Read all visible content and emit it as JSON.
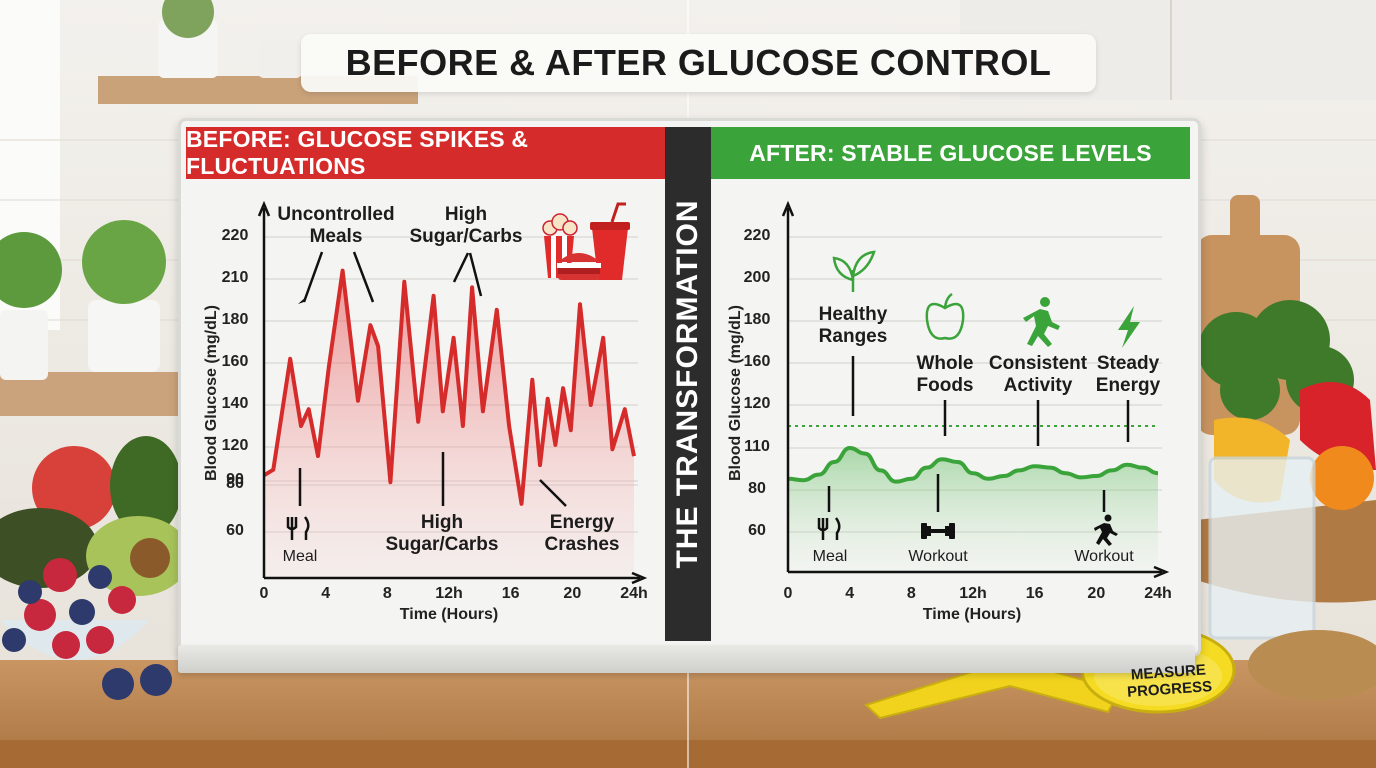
{
  "title": "BEFORE & AFTER GLUCOSE CONTROL",
  "divider_label": "THE TRANSFORMATION",
  "tape_label": [
    "MEASURE",
    "PROGRESS"
  ],
  "colors": {
    "before": "#d62b2b",
    "after": "#3aa33a",
    "divider": "#2c2c2c"
  },
  "chart_data": [
    {
      "type": "area",
      "title": "BEFORE: GLUCOSE SPIKES & FLUCTUATIONS",
      "xlabel": "Time (Hours)",
      "ylabel": "Blood Glucose (mg/dL)",
      "x_ticks": [
        "0",
        "4",
        "8",
        "12h",
        "16",
        "20",
        "24h"
      ],
      "y_ticks": [
        "60",
        "80",
        "90",
        "120",
        "140",
        "160",
        "180",
        "210",
        "220"
      ],
      "grid": true,
      "color": "#d62b2b",
      "x": [
        0,
        0.6,
        1.7,
        2.4,
        2.9,
        3.5,
        4.2,
        5.1,
        6.1,
        6.9,
        7.4,
        8.2,
        9.1,
        10.0,
        11.0,
        11.6,
        12.3,
        12.9,
        13.5,
        14.2,
        15.1,
        15.9,
        16.7,
        17.4,
        17.9,
        18.4,
        18.9,
        19.4,
        19.9,
        20.5,
        21.2,
        22.0,
        22.6,
        23.4,
        24.0
      ],
      "y": [
        95,
        100,
        162,
        130,
        138,
        112,
        158,
        212,
        142,
        178,
        168,
        87,
        208,
        132,
        198,
        137,
        172,
        130,
        204,
        137,
        188,
        130,
        72,
        152,
        104,
        143,
        121,
        148,
        128,
        192,
        140,
        172,
        118,
        138,
        112
      ],
      "annotations": [
        {
          "text": [
            "Uncontrolled",
            "Meals"
          ]
        },
        {
          "text": [
            "High",
            "Sugar/Carbs"
          ]
        },
        {
          "text": [
            "High",
            "Sugar/Carbs"
          ]
        },
        {
          "text": [
            "Energy",
            "Crashes"
          ]
        },
        {
          "text": [
            "Meal"
          ],
          "icon": "fork-knife-icon"
        }
      ],
      "icons": [
        "popcorn-icon",
        "burger-icon",
        "soda-cup-icon"
      ]
    },
    {
      "type": "area",
      "title": "AFTER: STABLE GLUCOSE LEVELS",
      "xlabel": "Time (Hours)",
      "ylabel": "Blood Glucose (mg/dL)",
      "x_ticks": [
        "0",
        "4",
        "8",
        "12h",
        "16",
        "20",
        "24h"
      ],
      "y_ticks": [
        "60",
        "80",
        "110",
        "120",
        "160",
        "180",
        "200",
        "220"
      ],
      "grid": true,
      "color": "#3aa33a",
      "reference_line": {
        "y": 114,
        "style": "dotted"
      },
      "x": [
        0,
        1,
        2,
        3,
        4,
        5,
        6,
        7,
        8,
        9,
        10,
        11,
        12,
        13,
        14,
        15,
        16,
        17,
        18,
        19,
        20,
        21,
        22,
        23,
        24
      ],
      "y": [
        88,
        87,
        91,
        100,
        110,
        106,
        94,
        86,
        88,
        96,
        102,
        100,
        92,
        88,
        90,
        94,
        97,
        96,
        92,
        89,
        90,
        94,
        98,
        96,
        92
      ],
      "annotations": [
        {
          "text": [
            "Healthy",
            "Ranges"
          ],
          "icon": "leaf-icon"
        },
        {
          "text": [
            "Whole",
            "Foods"
          ],
          "icon": "apple-icon"
        },
        {
          "text": [
            "Consistent",
            "Activity"
          ],
          "icon": "runner-icon"
        },
        {
          "text": [
            "Steady",
            "Energy"
          ],
          "icon": "lightning-icon"
        },
        {
          "text": [
            "Meal"
          ],
          "icon": "fork-knife-icon"
        },
        {
          "text": [
            "Workout"
          ],
          "icon": "dumbbell-icon"
        },
        {
          "text": [
            "Workout"
          ],
          "icon": "runner-icon"
        }
      ]
    }
  ]
}
